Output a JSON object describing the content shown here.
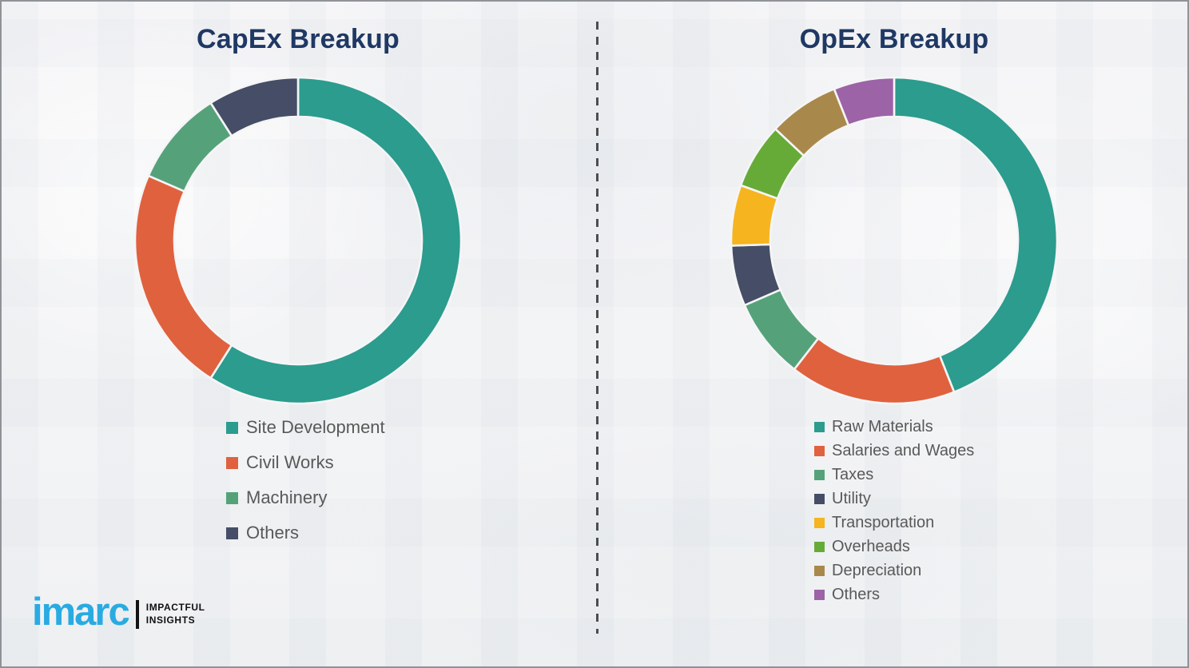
{
  "chart_data": [
    {
      "type": "pie",
      "donut": true,
      "title": "CapEx Breakup",
      "categories": [
        "Site Development",
        "Civil Works",
        "Machinery",
        "Others"
      ],
      "values": [
        59,
        22.5,
        9.5,
        9
      ],
      "colors": [
        "#2B9C8E",
        "#E0613E",
        "#55A27A",
        "#454E66"
      ],
      "units": "percent-estimated",
      "start_angle_deg": 0,
      "direction": "clockwise",
      "legend_position": "below-left",
      "inner_radius_ratio": 0.76
    },
    {
      "type": "pie",
      "donut": true,
      "title": "OpEx Breakup",
      "categories": [
        "Raw Materials",
        "Salaries and Wages",
        "Taxes",
        "Utility",
        "Transportation",
        "Overheads",
        "Depreciation",
        "Others"
      ],
      "values": [
        44,
        16.5,
        8,
        6,
        6,
        6.5,
        7,
        6
      ],
      "colors": [
        "#2B9C8E",
        "#E0613E",
        "#55A27A",
        "#454E66",
        "#F6B41E",
        "#66AB38",
        "#A9894B",
        "#9C63A7"
      ],
      "units": "percent-estimated",
      "start_angle_deg": 0,
      "direction": "clockwise",
      "legend_position": "below-left",
      "inner_radius_ratio": 0.76
    }
  ],
  "logo": {
    "brand": "imarc",
    "tagline_line1": "IMPACTFUL",
    "tagline_line2": "INSIGHTS",
    "brand_color": "#29ABE2"
  },
  "style_tokens": {
    "title_color": "#1F3864",
    "legend_text_color": "#595959",
    "background_color": "#F2F2F4",
    "divider_color": "#4D4D4D"
  }
}
